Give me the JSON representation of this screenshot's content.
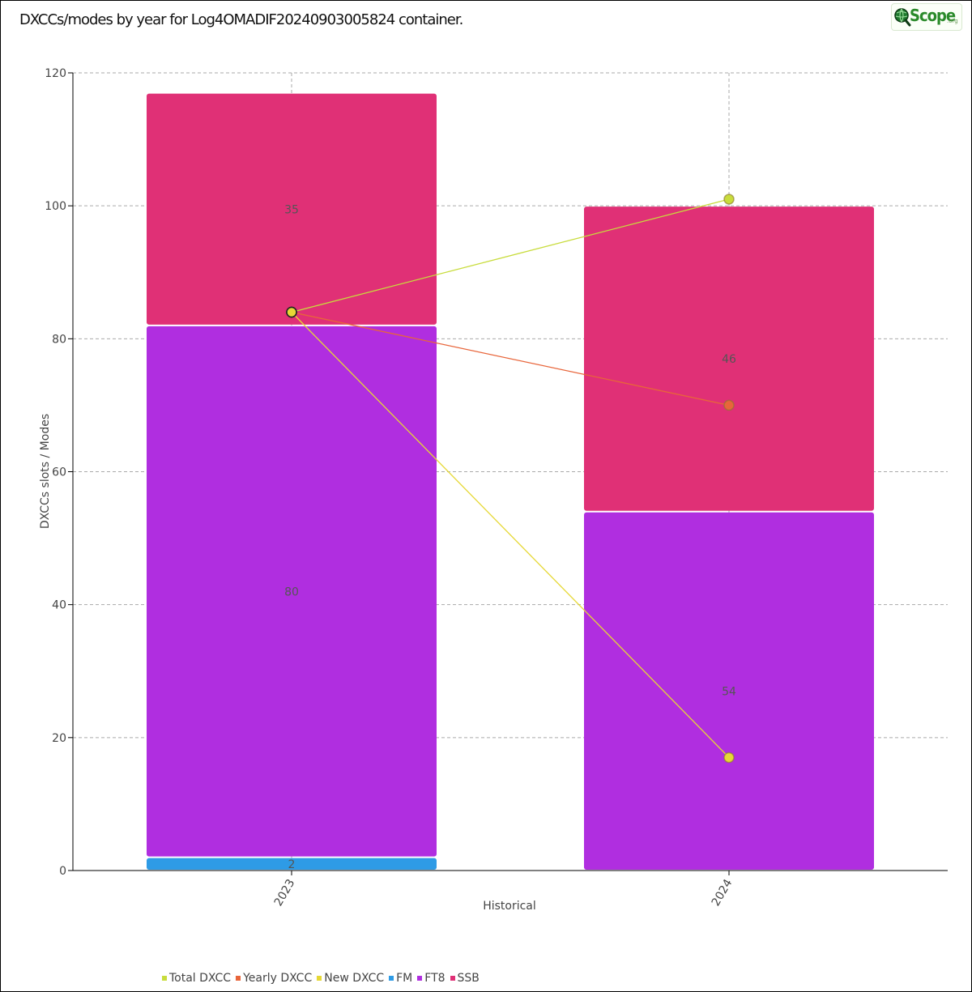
{
  "title": "DXCCs/modes by year for Log4OMADIF20240903005824 container.",
  "logo": {
    "text": "Scope",
    "sub": ".org",
    "icon": "globe-magnifier-icon"
  },
  "chart_data": {
    "type": "bar",
    "stacked": true,
    "categories": [
      "2023",
      "2024"
    ],
    "xlabel": "Historical",
    "ylabel": "DXCCs slots / Modes",
    "ylim": [
      0,
      120
    ],
    "yticks": [
      0,
      20,
      40,
      60,
      80,
      100,
      120
    ],
    "grid": true,
    "legend_position": "bottom-left",
    "series": [
      {
        "name": "FM",
        "kind": "bar",
        "color": "#2e9be6",
        "values": [
          2,
          0
        ]
      },
      {
        "name": "FT8",
        "kind": "bar",
        "color": "#b02ee0",
        "values": [
          80,
          54
        ]
      },
      {
        "name": "SSB",
        "kind": "bar",
        "color": "#e03076",
        "values": [
          35,
          46
        ]
      },
      {
        "name": "Total DXCC",
        "kind": "line",
        "color": "#c8dc3c",
        "values": [
          84,
          101
        ]
      },
      {
        "name": "Yearly DXCC",
        "kind": "line",
        "color": "#e8653a",
        "values": [
          84,
          70
        ]
      },
      {
        "name": "New DXCC",
        "kind": "line",
        "color": "#e6d835",
        "values": [
          84,
          17
        ]
      }
    ],
    "bar_labels": [
      {
        "series": "FM",
        "category": "2023",
        "text": "2"
      },
      {
        "series": "FT8",
        "category": "2023",
        "text": "80"
      },
      {
        "series": "SSB",
        "category": "2023",
        "text": "35"
      },
      {
        "series": "FT8",
        "category": "2024",
        "text": "54"
      },
      {
        "series": "SSB",
        "category": "2024",
        "text": "46"
      }
    ],
    "legend_order": [
      "Total DXCC",
      "Yearly DXCC",
      "New DXCC",
      "FM",
      "FT8",
      "SSB"
    ]
  }
}
